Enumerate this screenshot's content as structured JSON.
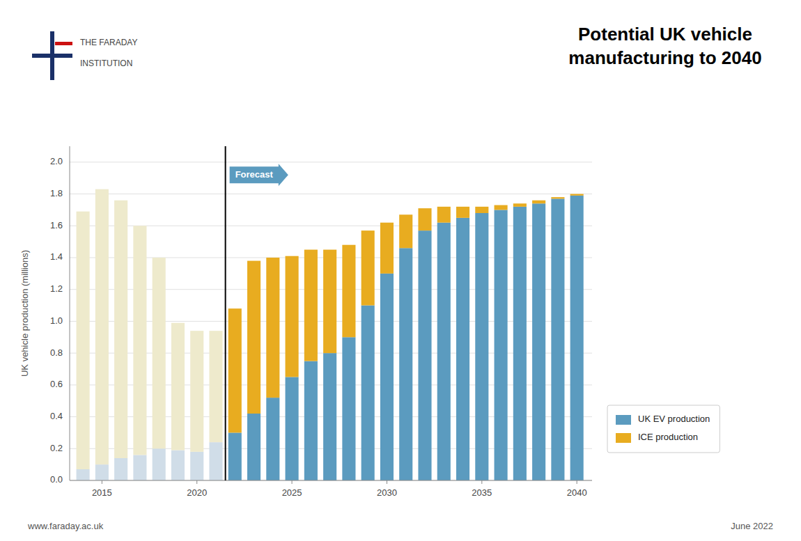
{
  "chart_data": {
    "type": "bar",
    "stacked": true,
    "title": "Potential UK vehicle\nmanufacturing to 2040",
    "y_label": "UK vehicle production  (millions)",
    "x": [
      2014,
      2015,
      2016,
      2017,
      2018,
      2019,
      2020,
      2021,
      2022,
      2023,
      2024,
      2025,
      2026,
      2027,
      2028,
      2029,
      2030,
      2031,
      2032,
      2033,
      2034,
      2035,
      2036,
      2037,
      2038,
      2039,
      2040
    ],
    "series": [
      {
        "name": "UK EV production",
        "color": "#5b9bbf",
        "colors": [
          "#d0dde8",
          "#d0dde8",
          "#d0dde8",
          "#d0dde8",
          "#d0dde8",
          "#d0dde8",
          "#d0dde8",
          "#d0dde8",
          "#5b9bbf",
          "#5b9bbf",
          "#5b9bbf",
          "#5b9bbf",
          "#5b9bbf",
          "#5b9bbf",
          "#5b9bbf",
          "#5b9bbf",
          "#5b9bbf",
          "#5b9bbf",
          "#5b9bbf",
          "#5b9bbf",
          "#5b9bbf",
          "#5b9bbf",
          "#5b9bbf",
          "#5b9bbf",
          "#5b9bbf",
          "#5b9bbf",
          "#5b9bbf"
        ],
        "values": [
          0.07,
          0.1,
          0.14,
          0.16,
          0.2,
          0.19,
          0.18,
          0.24,
          0.3,
          0.42,
          0.52,
          0.65,
          0.75,
          0.8,
          0.9,
          1.1,
          1.3,
          1.46,
          1.57,
          1.62,
          1.65,
          1.68,
          1.7,
          1.72,
          1.74,
          1.77,
          1.79
        ]
      },
      {
        "name": "ICE production",
        "color": "#e8ac20",
        "colors": [
          "#eeeacc",
          "#eeeacc",
          "#eeeacc",
          "#eeeacc",
          "#eeeacc",
          "#eeeacc",
          "#eeeacc",
          "#eeeacc",
          "#e8ac20",
          "#e8ac20",
          "#e8ac20",
          "#e8ac20",
          "#e8ac20",
          "#e8ac20",
          "#e8ac20",
          "#e8ac20",
          "#e8ac20",
          "#e8ac20",
          "#e8ac20",
          "#e8ac20",
          "#e8ac20",
          "#e8ac20",
          "#e8ac20",
          "#e8ac20",
          "#e8ac20",
          "#e8ac20",
          "#e8ac20"
        ],
        "values": [
          1.62,
          1.73,
          1.62,
          1.44,
          1.2,
          0.8,
          0.76,
          0.7,
          0.78,
          0.96,
          0.88,
          0.76,
          0.7,
          0.65,
          0.58,
          0.47,
          0.32,
          0.21,
          0.14,
          0.1,
          0.07,
          0.04,
          0.03,
          0.02,
          0.02,
          0.01,
          0.01
        ]
      }
    ],
    "xlim": [
      2013.3,
      2040.8
    ],
    "xticks": [
      2015,
      2020,
      2025,
      2030,
      2035,
      2040
    ],
    "ylim": [
      0.0,
      2.1
    ],
    "yticks": [
      {
        "value": 0.0,
        "label": "0.0"
      },
      0.2,
      0.4,
      0.6,
      0.8,
      {
        "value": 1.0,
        "label": "1.0"
      },
      1.2,
      1.4,
      1.6,
      1.8,
      {
        "value": 2.0,
        "label": "2.0"
      }
    ],
    "grid": true,
    "legend": "lower right",
    "annotations": [
      {
        "text": "Forecast",
        "x": 2021.5,
        "y": 1.92
      }
    ],
    "footer_left": "www.faraday.ac.uk",
    "footer_right": "June 2022",
    "logo_text": [
      "THE FARADAY",
      "INSTITUTION"
    ]
  }
}
